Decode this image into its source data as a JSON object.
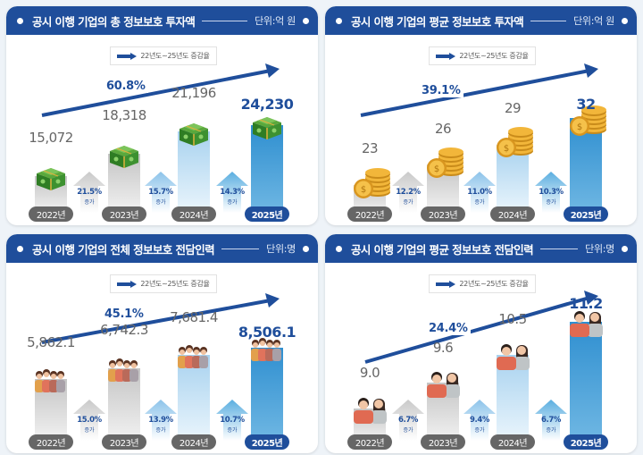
{
  "legend_label": "22년도~25년도 증감율",
  "growth_suffix": "증가",
  "colors": {
    "header": "#1f4e9b",
    "accent_text": "#1f4e9b",
    "bar_gray": "#c4c4c4",
    "bar_light": "#a8d2ef",
    "bar_strong": "#2f8fd0",
    "year_pill": "#666666",
    "year_pill_highlight": "#1f4e9b"
  },
  "panels": [
    {
      "title": "공시 이행 기업의 총 정보보호 투자액",
      "unit": "단위:억 원",
      "icon": "money-stack-icon",
      "trend_pct": "60.8%",
      "years": [
        "2022년",
        "2023년",
        "2024년",
        "2025년"
      ],
      "values": [
        "15,072",
        "18,318",
        "21,196",
        "24,230"
      ],
      "growth": [
        "21.5%",
        "15.7%",
        "14.3%"
      ]
    },
    {
      "title": "공시 이행 기업의 평균 정보보호 투자액",
      "unit": "단위:억 원",
      "icon": "coin-stack-icon",
      "trend_pct": "39.1%",
      "years": [
        "2022년",
        "2023년",
        "2024년",
        "2025년"
      ],
      "values": [
        "23",
        "26",
        "29",
        "32"
      ],
      "growth": [
        "12.2%",
        "11.0%",
        "10.3%"
      ]
    },
    {
      "title": "공시 이행 기업의 전체 정보보호 전담인력",
      "unit": "단위:명",
      "icon": "people-group-icon",
      "trend_pct": "45.1%",
      "years": [
        "2022년",
        "2023년",
        "2024년",
        "2025년"
      ],
      "values": [
        "5,862.1",
        "6,742.3",
        "7,681.4",
        "8,506.1"
      ],
      "growth": [
        "15.0%",
        "13.9%",
        "10.7%"
      ]
    },
    {
      "title": "공시 이행 기업의 평균 정보보호 전담인력",
      "unit": "단위:명",
      "icon": "people-pair-icon",
      "trend_pct": "24.4%",
      "years": [
        "2022년",
        "2023년",
        "2024년",
        "2025년"
      ],
      "values": [
        "9.0",
        "9.6",
        "10.5",
        "11.2"
      ],
      "growth": [
        "6.7%",
        "9.4%",
        "6.7%"
      ]
    }
  ],
  "chart_data": [
    {
      "type": "bar",
      "title": "공시 이행 기업의 총 정보보호 투자액",
      "unit": "억 원",
      "categories": [
        "2022년",
        "2023년",
        "2024년",
        "2025년"
      ],
      "values": [
        15072,
        18318,
        21196,
        24230
      ],
      "yoy_growth_pct": [
        21.5,
        15.7,
        14.3
      ],
      "total_change_pct_2022_2025": 60.8,
      "legend": [
        "22년도~25년도 증감율"
      ]
    },
    {
      "type": "bar",
      "title": "공시 이행 기업의 평균 정보보호 투자액",
      "unit": "억 원",
      "categories": [
        "2022년",
        "2023년",
        "2024년",
        "2025년"
      ],
      "values": [
        23,
        26,
        29,
        32
      ],
      "yoy_growth_pct": [
        12.2,
        11.0,
        10.3
      ],
      "total_change_pct_2022_2025": 39.1,
      "legend": [
        "22년도~25년도 증감율"
      ]
    },
    {
      "type": "bar",
      "title": "공시 이행 기업의 전체 정보보호 전담인력",
      "unit": "명",
      "categories": [
        "2022년",
        "2023년",
        "2024년",
        "2025년"
      ],
      "values": [
        5862.1,
        6742.3,
        7681.4,
        8506.1
      ],
      "yoy_growth_pct": [
        15.0,
        13.9,
        10.7
      ],
      "total_change_pct_2022_2025": 45.1,
      "legend": [
        "22년도~25년도 증감율"
      ]
    },
    {
      "type": "bar",
      "title": "공시 이행 기업의 평균 정보보호 전담인력",
      "unit": "명",
      "categories": [
        "2022년",
        "2023년",
        "2024년",
        "2025년"
      ],
      "values": [
        9.0,
        9.6,
        10.5,
        11.2
      ],
      "yoy_growth_pct": [
        6.7,
        9.4,
        6.7
      ],
      "total_change_pct_2022_2025": 24.4,
      "legend": [
        "22년도~25년도 증감율"
      ]
    }
  ]
}
